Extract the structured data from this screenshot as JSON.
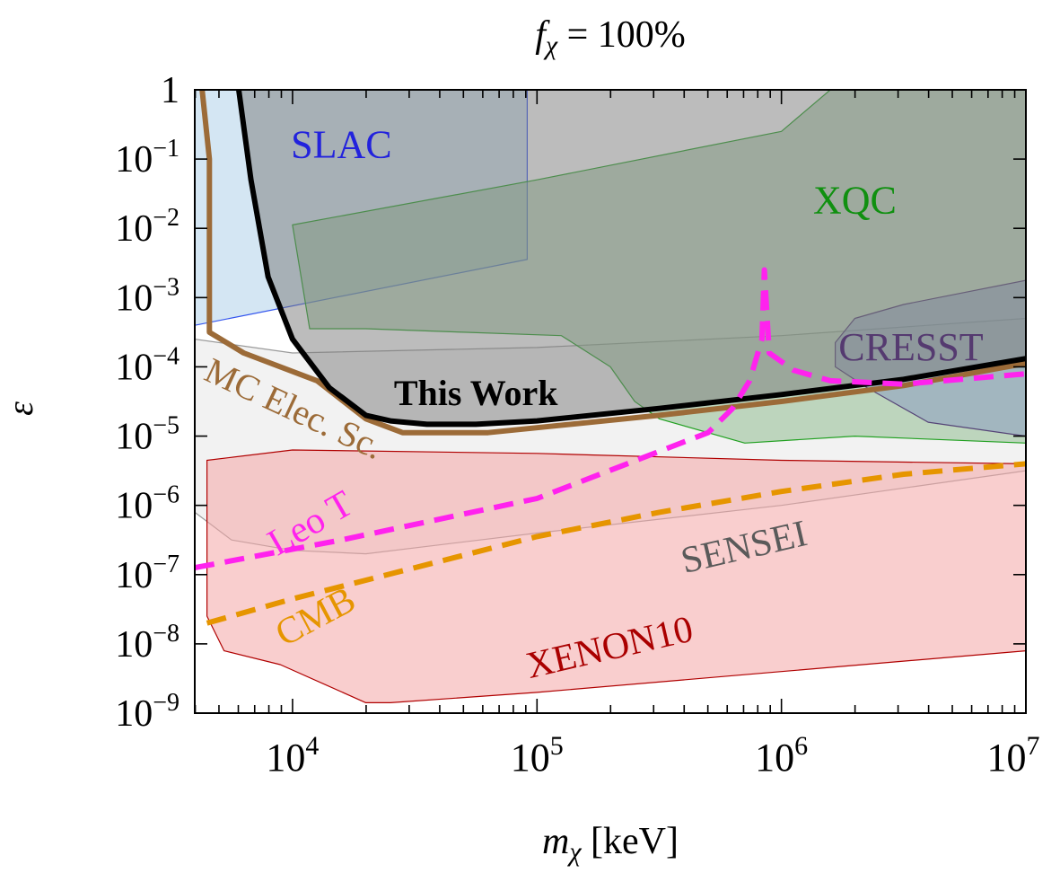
{
  "chart_data": {
    "type": "area",
    "title": {
      "italic_symbol": "f",
      "subscript": "χ",
      "rest": " = 100%"
    },
    "xlabel": {
      "symbol": "m",
      "subscript": "χ",
      "unit": "[keV]"
    },
    "ylabel": "ε",
    "x_scale": "log",
    "y_scale": "log",
    "xlim_log10": [
      3.6,
      7.0
    ],
    "ylim_log10": [
      -9,
      0
    ],
    "x_ticks": [
      {
        "log10": 4,
        "base": "10",
        "exp": "4"
      },
      {
        "log10": 5,
        "base": "10",
        "exp": "5"
      },
      {
        "log10": 6,
        "base": "10",
        "exp": "6"
      },
      {
        "log10": 7,
        "base": "10",
        "exp": "7"
      }
    ],
    "y_ticks": [
      {
        "log10": 0,
        "base": "1",
        "exp": ""
      },
      {
        "log10": -1,
        "base": "10",
        "exp": "−1"
      },
      {
        "log10": -2,
        "base": "10",
        "exp": "−2"
      },
      {
        "log10": -3,
        "base": "10",
        "exp": "−3"
      },
      {
        "log10": -4,
        "base": "10",
        "exp": "−4"
      },
      {
        "log10": -5,
        "base": "10",
        "exp": "−5"
      },
      {
        "log10": -6,
        "base": "10",
        "exp": "−6"
      },
      {
        "log10": -7,
        "base": "10",
        "exp": "−7"
      },
      {
        "log10": -8,
        "base": "10",
        "exp": "−8"
      },
      {
        "log10": -9,
        "base": "10",
        "exp": "−9"
      }
    ],
    "regions": [
      {
        "name": "SENSEI",
        "fill": "#d9d9d9",
        "fill_opacity": 0.35,
        "stroke": "#9a9a9a",
        "label": "SENSEI",
        "label_color": "#5a5a5a",
        "points": [
          [
            3.6,
            -3.6
          ],
          [
            4.0,
            -3.8
          ],
          [
            5.0,
            -3.72
          ],
          [
            6.0,
            -3.55
          ],
          [
            7.0,
            -3.3
          ],
          [
            7.0,
            -5.5
          ],
          [
            6.0,
            -6.0
          ],
          [
            5.0,
            -6.4
          ],
          [
            4.3,
            -6.7
          ],
          [
            4.0,
            -6.65
          ],
          [
            3.75,
            -6.5
          ],
          [
            3.6,
            -6.1
          ]
        ]
      },
      {
        "name": "XENON10",
        "fill": "#f4a6a6",
        "fill_opacity": 0.55,
        "stroke": "#b00000",
        "label": "XENON10",
        "label_color": "#aa0000",
        "points": [
          [
            3.65,
            -5.35
          ],
          [
            4.0,
            -5.2
          ],
          [
            5.0,
            -5.25
          ],
          [
            6.0,
            -5.35
          ],
          [
            7.0,
            -5.4
          ],
          [
            7.0,
            -8.1
          ],
          [
            6.0,
            -8.4
          ],
          [
            5.0,
            -8.7
          ],
          [
            4.4,
            -8.85
          ],
          [
            4.3,
            -8.85
          ],
          [
            3.95,
            -8.3
          ],
          [
            3.72,
            -8.1
          ],
          [
            3.65,
            -7.6
          ]
        ]
      },
      {
        "name": "SLAC",
        "fill": "#a9cde8",
        "fill_opacity": 0.5,
        "stroke": "#3355ee",
        "label": "SLAC",
        "label_color": "#2222dd",
        "points": [
          [
            3.6,
            0
          ],
          [
            4.96,
            0
          ],
          [
            4.96,
            -2.45
          ],
          [
            3.6,
            -3.4
          ]
        ]
      },
      {
        "name": "XQC",
        "fill": "#88b888",
        "fill_opacity": 0.5,
        "stroke": "#20a020",
        "label": "XQC",
        "label_color": "#109010",
        "points": [
          [
            4.0,
            -1.95
          ],
          [
            5.0,
            -1.3
          ],
          [
            6.0,
            -0.6
          ],
          [
            6.2,
            0
          ],
          [
            7.0,
            0
          ],
          [
            7.0,
            -5.1
          ],
          [
            6.3,
            -5.0
          ],
          [
            5.85,
            -5.1
          ],
          [
            5.5,
            -4.75
          ],
          [
            5.4,
            -4.5
          ],
          [
            5.3,
            -4.0
          ],
          [
            5.1,
            -3.55
          ],
          [
            4.7,
            -3.5
          ],
          [
            4.3,
            -3.45
          ],
          [
            4.07,
            -3.45
          ]
        ]
      },
      {
        "name": "CRESST",
        "fill": "#8090c0",
        "fill_opacity": 0.45,
        "stroke": "#554477",
        "label": "CRESST",
        "label_color": "#553a70",
        "points": [
          [
            6.22,
            -3.65
          ],
          [
            6.3,
            -3.3
          ],
          [
            6.5,
            -3.1
          ],
          [
            7.0,
            -2.75
          ],
          [
            7.0,
            -5.0
          ],
          [
            6.6,
            -4.8
          ],
          [
            6.35,
            -4.3
          ],
          [
            6.22,
            -4.0
          ]
        ]
      },
      {
        "name": "This Work",
        "fill": "#7a7a7a",
        "fill_opacity": 0.5,
        "stroke": "#000000",
        "label": "This Work",
        "label_color": "#000000",
        "points": [
          [
            3.78,
            0
          ],
          [
            4.8,
            0
          ],
          [
            6.0,
            0
          ],
          [
            7.0,
            0
          ],
          [
            7.0,
            -3.88
          ],
          [
            6.5,
            -4.18
          ],
          [
            6.0,
            -4.4
          ],
          [
            5.5,
            -4.6
          ],
          [
            5.0,
            -4.78
          ],
          [
            4.75,
            -4.83
          ],
          [
            4.55,
            -4.83
          ],
          [
            4.4,
            -4.78
          ],
          [
            4.3,
            -4.7
          ],
          [
            4.15,
            -4.3
          ],
          [
            4.0,
            -3.6
          ],
          [
            3.9,
            -2.7
          ],
          [
            3.83,
            -1.3
          ]
        ]
      }
    ],
    "lines": [
      {
        "name": "MC Elec. Sc.",
        "color": "#9c6b38",
        "width": 6,
        "dash": "",
        "label": "MC Elec. Sc.",
        "label_color": "#9c6b38",
        "points": [
          [
            3.63,
            0
          ],
          [
            3.66,
            -1.0
          ],
          [
            3.66,
            -3.5
          ],
          [
            3.8,
            -3.8
          ],
          [
            4.1,
            -4.2
          ],
          [
            4.3,
            -4.75
          ],
          [
            4.45,
            -4.95
          ],
          [
            4.8,
            -4.95
          ],
          [
            5.5,
            -4.7
          ],
          [
            6.0,
            -4.5
          ],
          [
            6.5,
            -4.27
          ],
          [
            7.0,
            -3.95
          ]
        ]
      },
      {
        "name": "This Work (edge)",
        "color": "#000000",
        "width": 6,
        "dash": "",
        "label": "",
        "label_color": "#000000",
        "points": [
          [
            3.78,
            0
          ],
          [
            3.83,
            -1.3
          ],
          [
            3.9,
            -2.7
          ],
          [
            4.0,
            -3.6
          ],
          [
            4.15,
            -4.3
          ],
          [
            4.3,
            -4.7
          ],
          [
            4.4,
            -4.78
          ],
          [
            4.55,
            -4.83
          ],
          [
            4.75,
            -4.83
          ],
          [
            5.0,
            -4.78
          ],
          [
            5.5,
            -4.6
          ],
          [
            6.0,
            -4.4
          ],
          [
            6.5,
            -4.18
          ],
          [
            7.0,
            -3.88
          ]
        ]
      },
      {
        "name": "Leo T",
        "color": "#ff22ee",
        "width": 6,
        "dash": "22,12",
        "label": "Leo T",
        "label_color": "#ff22ee",
        "points": [
          [
            3.6,
            -6.9
          ],
          [
            4.2,
            -6.5
          ],
          [
            5.0,
            -5.9
          ],
          [
            5.7,
            -4.95
          ],
          [
            5.8,
            -4.6
          ],
          [
            5.87,
            -4.2
          ],
          [
            5.92,
            -3.6
          ],
          [
            5.93,
            -2.6
          ],
          [
            5.95,
            -3.8
          ],
          [
            6.05,
            -4.05
          ],
          [
            6.2,
            -4.2
          ],
          [
            6.5,
            -4.25
          ],
          [
            7.0,
            -4.1
          ]
        ]
      },
      {
        "name": "CMB",
        "color": "#e69500",
        "width": 6,
        "dash": "22,12",
        "label": "CMB",
        "label_color": "#e69500",
        "points": [
          [
            3.65,
            -7.7
          ],
          [
            4.0,
            -7.35
          ],
          [
            4.5,
            -6.9
          ],
          [
            5.0,
            -6.45
          ],
          [
            5.5,
            -6.1
          ],
          [
            6.0,
            -5.8
          ],
          [
            6.5,
            -5.55
          ],
          [
            7.0,
            -5.4
          ]
        ]
      }
    ],
    "labels": [
      {
        "text": "SLAC",
        "ref": "SLAC",
        "at": [
          4.2,
          -0.85
        ],
        "size": 44,
        "rotate": 0,
        "bold": false
      },
      {
        "text": "XQC",
        "ref": "XQC",
        "at": [
          6.3,
          -1.65
        ],
        "size": 44,
        "rotate": 0,
        "bold": false
      },
      {
        "text": "CRESST",
        "ref": "CRESST",
        "at": [
          6.53,
          -3.77
        ],
        "size": 44,
        "rotate": 0,
        "bold": false
      },
      {
        "text": "This Work",
        "ref": "This Work",
        "at": [
          4.75,
          -4.43
        ],
        "size": 40,
        "rotate": 0,
        "bold": true
      },
      {
        "text": "MC Elec. Sc.",
        "ref": "MC Elec. Sc.",
        "at": [
          4.0,
          -4.65
        ],
        "size": 40,
        "rotate": 25,
        "bold": false
      },
      {
        "text": "Leo T",
        "ref": "Leo T",
        "at": [
          4.08,
          -6.3
        ],
        "size": 42,
        "rotate": -30,
        "bold": false
      },
      {
        "text": "SENSEI",
        "ref": "SENSEI",
        "at": [
          5.85,
          -6.65
        ],
        "size": 42,
        "rotate": -13,
        "bold": false
      },
      {
        "text": "CMB",
        "ref": "CMB",
        "at": [
          4.1,
          -7.65
        ],
        "size": 42,
        "rotate": -28,
        "bold": false
      },
      {
        "text": "XENON10",
        "ref": "XENON10",
        "at": [
          5.3,
          -8.1
        ],
        "size": 42,
        "rotate": -13,
        "bold": false
      }
    ]
  }
}
